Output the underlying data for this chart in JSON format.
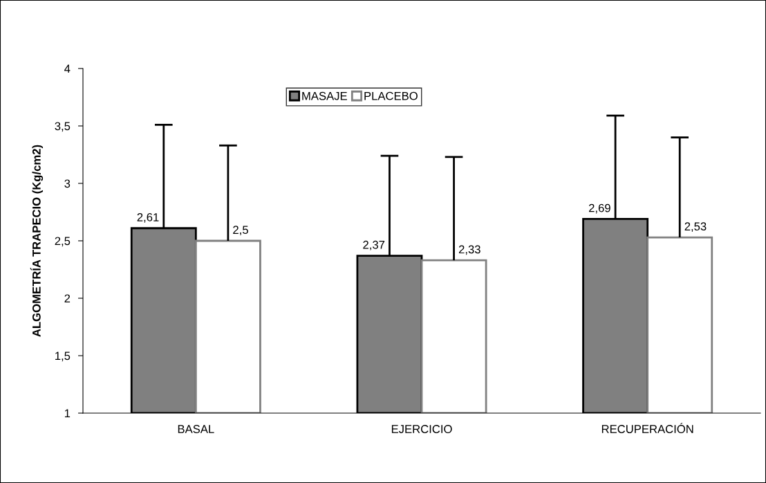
{
  "chart_data": {
    "type": "bar",
    "ylabel": "ALGOMETRÍA TRAPECIO (Kg/cm2)",
    "categories": [
      "BASAL",
      "EJERCICIO",
      "RECUPERACIÓN"
    ],
    "series": [
      {
        "name": "MASAJE",
        "color": "#808080",
        "values": [
          2.61,
          2.37,
          2.69
        ],
        "errors": [
          [
            2.61,
            3.51
          ],
          [
            2.37,
            3.24
          ],
          [
            2.69,
            3.59
          ]
        ],
        "value_labels": [
          "2,61",
          "2,37",
          "2,69"
        ]
      },
      {
        "name": "PLACEBO",
        "color": "#ffffff",
        "values": [
          2.5,
          2.33,
          2.53
        ],
        "errors": [
          [
            2.5,
            3.33
          ],
          [
            2.33,
            3.23
          ],
          [
            2.53,
            3.4
          ]
        ],
        "value_labels": [
          "2,5",
          "2,33",
          "2,53"
        ]
      }
    ],
    "ylim": [
      1,
      4
    ],
    "yticks": [
      1,
      {
        "value": 1.5,
        "label": "1,5"
      },
      2,
      {
        "value": 2.5,
        "label": "2,5"
      },
      3,
      {
        "value": 3.5,
        "label": "3,5"
      },
      4
    ],
    "grid": false,
    "legend": "top"
  }
}
